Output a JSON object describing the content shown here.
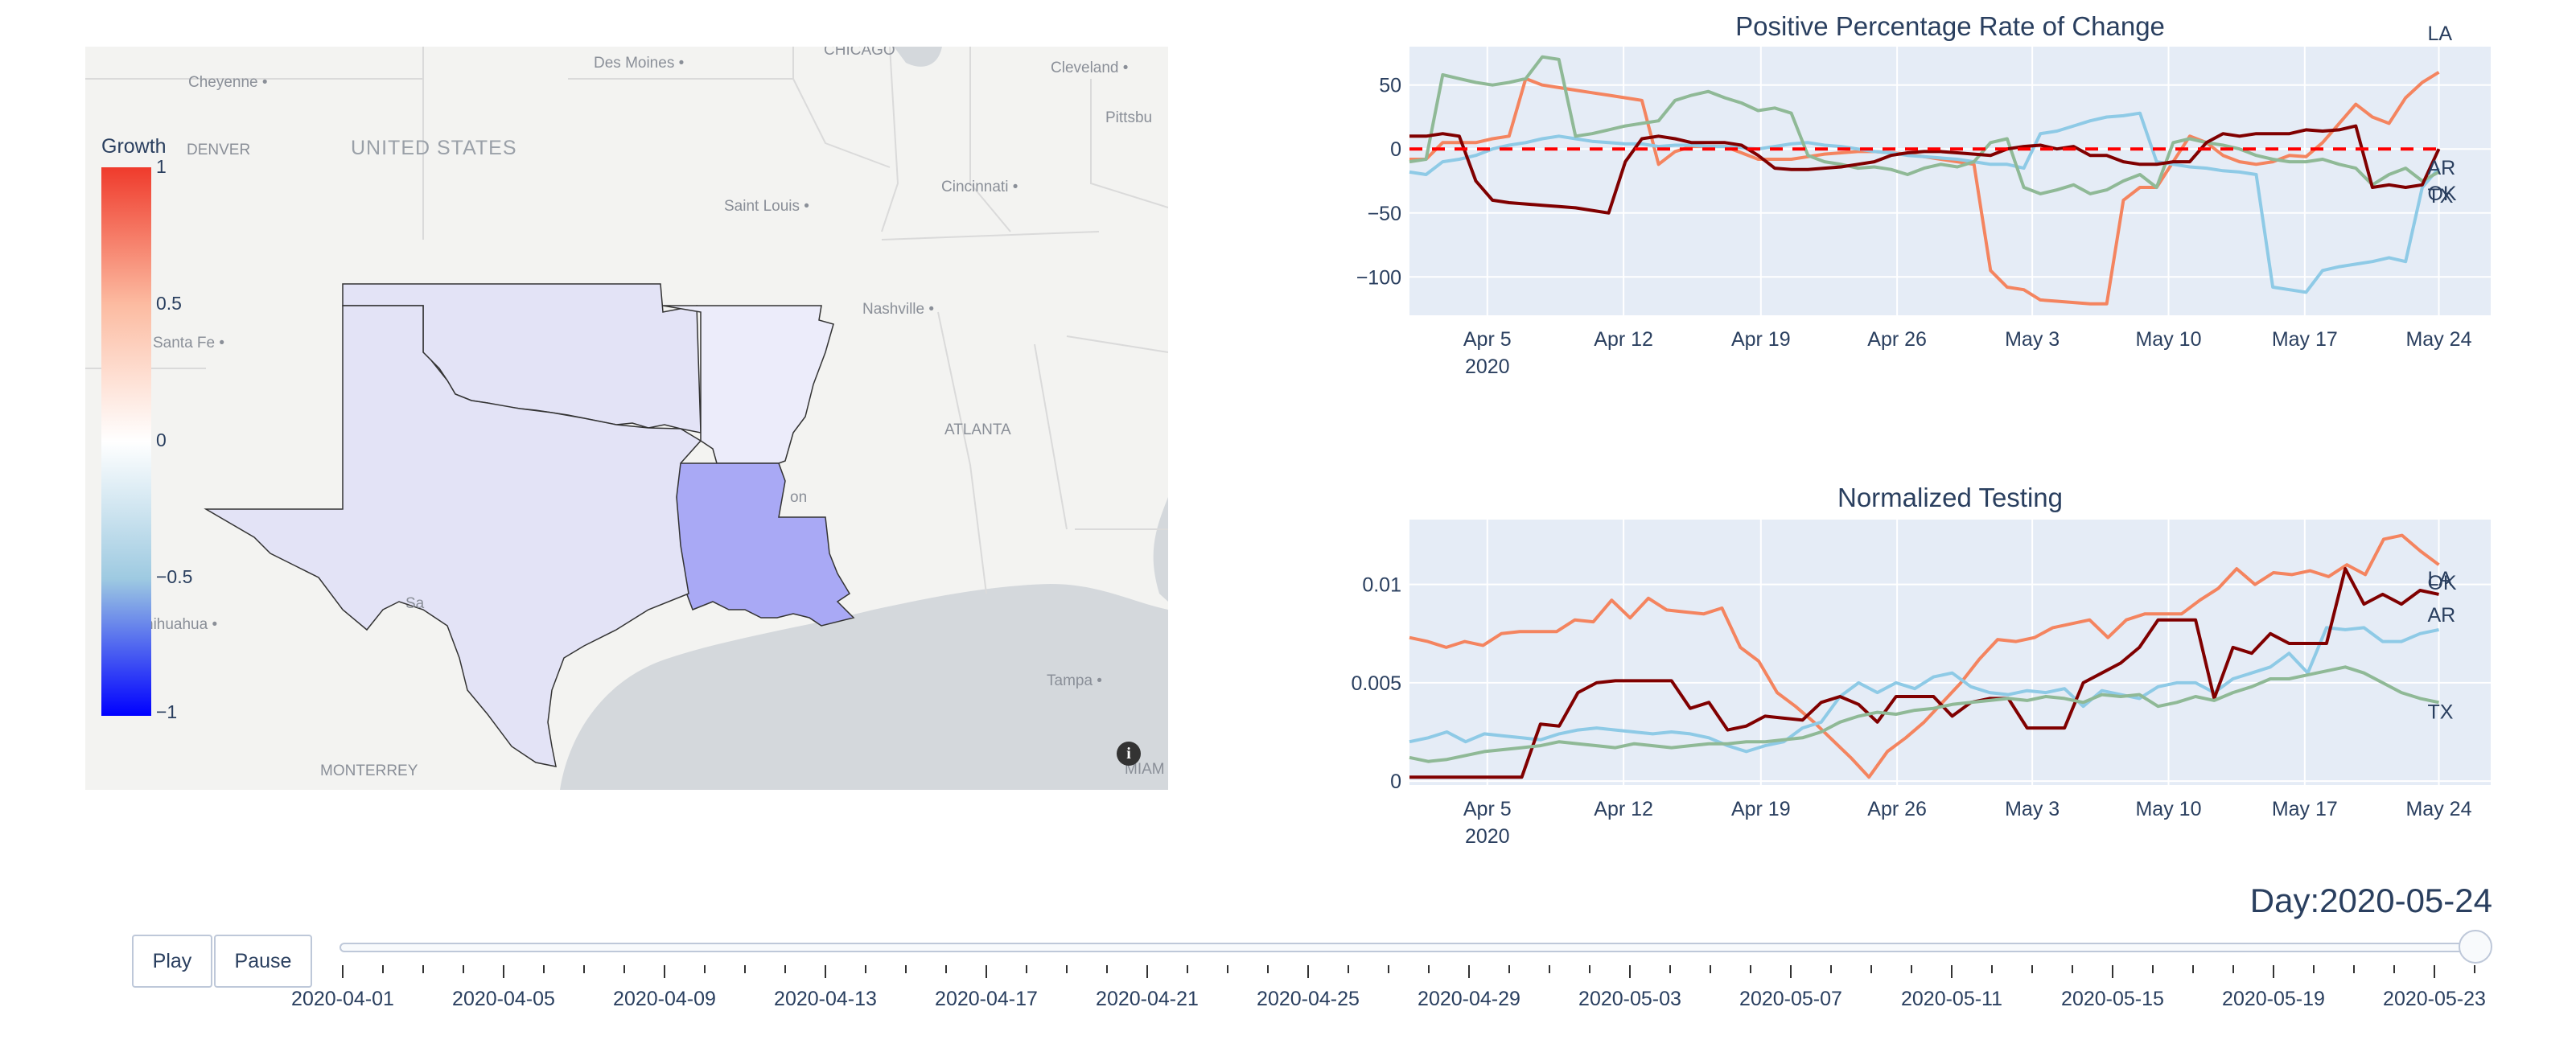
{
  "map": {
    "colorbar_title": "Growth",
    "colorbar_ticks": [
      "1",
      "0.5",
      "0",
      "−0.5",
      "−1"
    ],
    "place_labels": [
      {
        "name": "Cheyenne",
        "kind": "city"
      },
      {
        "name": "Des Moines",
        "kind": "city"
      },
      {
        "name": "CHICAGO",
        "kind": "city"
      },
      {
        "name": "Cleveland",
        "kind": "city"
      },
      {
        "name": "Pittsbu",
        "kind": "city"
      },
      {
        "name": "DENVER",
        "kind": "city"
      },
      {
        "name": "UNITED STATES",
        "kind": "country"
      },
      {
        "name": "Saint Louis",
        "kind": "city"
      },
      {
        "name": "Cincinnati",
        "kind": "city"
      },
      {
        "name": "Nashville",
        "kind": "city"
      },
      {
        "name": "Santa Fe",
        "kind": "city"
      },
      {
        "name": "ATLANTA",
        "kind": "city"
      },
      {
        "name": "on",
        "kind": "city"
      },
      {
        "name": "hihuahua",
        "kind": "city"
      },
      {
        "name": "Tampa",
        "kind": "city"
      },
      {
        "name": "MONTERREY",
        "kind": "city"
      },
      {
        "name": "MIAM",
        "kind": "city"
      },
      {
        "name": "Sa",
        "kind": "city"
      }
    ],
    "state_growth": {
      "TX": -0.12,
      "OK": -0.08,
      "AR": -0.05,
      "LA": -0.35
    },
    "info_icon": "info-icon"
  },
  "chart_data": [
    {
      "type": "line",
      "title": "Positive Percentage Rate of Change",
      "x_tick_labels": [
        "Apr 5",
        "Apr 12",
        "Apr 19",
        "Apr 26",
        "May 3",
        "May 10",
        "May 17",
        "May 24"
      ],
      "x_tick_sublabel": "2020",
      "y_tick_labels": [
        "50",
        "0",
        "−50",
        "−100"
      ],
      "ylim": [
        -130,
        80
      ],
      "x_start": "2020-04-01",
      "reference_line": {
        "y": 0,
        "color": "#ff0000",
        "style": "dashed"
      },
      "series": [
        {
          "name": "LA",
          "color": "#f4845f",
          "values": [
            -8,
            -8,
            5,
            5,
            5,
            8,
            10,
            55,
            50,
            48,
            46,
            44,
            42,
            40,
            38,
            -12,
            -2,
            2,
            2,
            2,
            -3,
            -8,
            -8,
            -8,
            -6,
            -4,
            -3,
            -2,
            -2,
            -3,
            -4,
            -6,
            -8,
            -10,
            -12,
            -95,
            -108,
            -110,
            -118,
            -119,
            -120,
            -121,
            -121,
            -40,
            -30,
            -30,
            -10,
            10,
            5,
            -5,
            -10,
            -12,
            -10,
            -5,
            -6,
            5,
            20,
            35,
            25,
            20,
            40,
            52,
            60
          ]
        },
        {
          "name": "AR",
          "color": "#8ecae6",
          "values": [
            -18,
            -20,
            -10,
            -8,
            -5,
            0,
            3,
            5,
            8,
            10,
            8,
            6,
            5,
            4,
            4,
            2,
            3,
            3,
            2,
            2,
            1,
            0,
            2,
            4,
            5,
            3,
            2,
            0,
            -2,
            -3,
            -5,
            -6,
            -7,
            -8,
            -10,
            -12,
            -12,
            -15,
            12,
            14,
            18,
            22,
            25,
            26,
            28,
            -10,
            -12,
            -14,
            -15,
            -17,
            -18,
            -20,
            -108,
            -110,
            -112,
            -95,
            -92,
            -90,
            -88,
            -85,
            -88,
            -30,
            -15
          ]
        },
        {
          "name": "OK",
          "color": "#8fb996",
          "values": [
            -10,
            -8,
            58,
            55,
            52,
            50,
            52,
            55,
            72,
            70,
            10,
            12,
            15,
            18,
            20,
            22,
            38,
            42,
            45,
            40,
            36,
            30,
            32,
            28,
            -5,
            -10,
            -12,
            -15,
            -14,
            -16,
            -20,
            -15,
            -12,
            -14,
            -10,
            5,
            8,
            -30,
            -35,
            -32,
            -28,
            -35,
            -32,
            -25,
            -20,
            -30,
            5,
            8,
            5,
            3,
            0,
            -5,
            -8,
            -10,
            -10,
            -8,
            -12,
            -15,
            -28,
            -20,
            -15,
            -25,
            -18
          ]
        },
        {
          "name": "TX",
          "color": "#800000",
          "values": [
            10,
            10,
            12,
            10,
            -25,
            -40,
            -42,
            -43,
            -44,
            -45,
            -46,
            -48,
            -50,
            -10,
            8,
            10,
            8,
            5,
            5,
            5,
            3,
            -5,
            -15,
            -16,
            -16,
            -15,
            -14,
            -12,
            -10,
            -5,
            -3,
            -2,
            -2,
            -3,
            -4,
            -5,
            0,
            2,
            3,
            0,
            2,
            -5,
            -5,
            -10,
            -12,
            -12,
            -10,
            -10,
            5,
            12,
            10,
            12,
            12,
            12,
            15,
            14,
            15,
            18,
            -30,
            -28,
            -30,
            -28,
            0
          ]
        }
      ]
    },
    {
      "type": "line",
      "title": "Normalized Testing",
      "x_tick_labels": [
        "Apr 5",
        "Apr 12",
        "Apr 19",
        "Apr 26",
        "May 3",
        "May 10",
        "May 17",
        "May 24"
      ],
      "x_tick_sublabel": "2020",
      "y_tick_labels": [
        "0.01",
        "0.005",
        "0"
      ],
      "ylim": [
        -0.0002,
        0.0133
      ],
      "x_start": "2020-04-01",
      "series": [
        {
          "name": "LA",
          "color": "#f4845f",
          "values": [
            0.0073,
            0.0071,
            0.0068,
            0.0071,
            0.0069,
            0.0075,
            0.0076,
            0.0076,
            0.0076,
            0.0082,
            0.0081,
            0.0092,
            0.0083,
            0.0093,
            0.0087,
            0.0086,
            0.0085,
            0.0088,
            0.0068,
            0.0061,
            0.0045,
            0.0038,
            0.003,
            0.0021,
            0.0012,
            0.0002,
            0.0015,
            0.0022,
            0.003,
            0.004,
            0.005,
            0.0062,
            0.0072,
            0.0071,
            0.0073,
            0.0078,
            0.008,
            0.0082,
            0.0073,
            0.0082,
            0.0085,
            0.0085,
            0.0085,
            0.0092,
            0.0098,
            0.0108,
            0.01,
            0.0106,
            0.0105,
            0.0107,
            0.0104,
            0.011,
            0.0105,
            0.0123,
            0.0125,
            0.0117,
            0.011
          ]
        },
        {
          "name": "AR",
          "color": "#8ecae6",
          "values": [
            0.002,
            0.0022,
            0.0025,
            0.002,
            0.0024,
            0.0023,
            0.0022,
            0.0021,
            0.0024,
            0.0026,
            0.0027,
            0.0026,
            0.0025,
            0.0024,
            0.0025,
            0.0024,
            0.0022,
            0.0018,
            0.0015,
            0.0018,
            0.002,
            0.0027,
            0.003,
            0.0043,
            0.005,
            0.0045,
            0.005,
            0.0047,
            0.0053,
            0.0055,
            0.0048,
            0.0045,
            0.0044,
            0.0046,
            0.0045,
            0.0047,
            0.0038,
            0.0046,
            0.0044,
            0.0042,
            0.0048,
            0.005,
            0.005,
            0.0045,
            0.0052,
            0.0055,
            0.0058,
            0.0065,
            0.0055,
            0.0078,
            0.0077,
            0.0078,
            0.0071,
            0.0071,
            0.0075,
            0.0077
          ]
        },
        {
          "name": "OK",
          "color": "#800000",
          "values": [
            0.0002,
            0.0002,
            0.0002,
            0.0002,
            0.0002,
            0.0002,
            0.0002,
            0.0029,
            0.0028,
            0.0045,
            0.005,
            0.0051,
            0.0051,
            0.0051,
            0.0051,
            0.0037,
            0.004,
            0.0026,
            0.0028,
            0.0033,
            0.0032,
            0.0031,
            0.004,
            0.0043,
            0.0039,
            0.003,
            0.0043,
            0.0043,
            0.0043,
            0.0033,
            0.004,
            0.0042,
            0.0042,
            0.0027,
            0.0027,
            0.0027,
            0.005,
            0.0055,
            0.006,
            0.0068,
            0.0082,
            0.0082,
            0.0082,
            0.0042,
            0.0068,
            0.0065,
            0.0075,
            0.007,
            0.007,
            0.007,
            0.0108,
            0.009,
            0.0095,
            0.009,
            0.0097,
            0.0095
          ]
        },
        {
          "name": "TX",
          "color": "#8fb996",
          "values": [
            0.0012,
            0.001,
            0.0011,
            0.0013,
            0.0015,
            0.0016,
            0.0017,
            0.0018,
            0.002,
            0.0019,
            0.0018,
            0.0017,
            0.0019,
            0.0018,
            0.0017,
            0.0018,
            0.0019,
            0.0019,
            0.002,
            0.002,
            0.0021,
            0.0022,
            0.0025,
            0.003,
            0.0033,
            0.0035,
            0.0034,
            0.0036,
            0.0037,
            0.0039,
            0.004,
            0.0041,
            0.0042,
            0.0041,
            0.0043,
            0.0042,
            0.004,
            0.0044,
            0.0043,
            0.0044,
            0.0038,
            0.004,
            0.0043,
            0.0041,
            0.0045,
            0.0048,
            0.0052,
            0.0052,
            0.0054,
            0.0056,
            0.0058,
            0.0055,
            0.005,
            0.0045,
            0.0042,
            0.004
          ]
        }
      ]
    }
  ],
  "player": {
    "play_label": "Play",
    "pause_label": "Pause",
    "day_prefix": "Day:",
    "current_day": "2020-05-24",
    "slider_labels": [
      "2020-04-01",
      "2020-04-05",
      "2020-04-09",
      "2020-04-13",
      "2020-04-17",
      "2020-04-21",
      "2020-04-25",
      "2020-04-29",
      "2020-05-03",
      "2020-05-07",
      "2020-05-11",
      "2020-05-15",
      "2020-05-19",
      "2020-05-23"
    ],
    "slider_position": 1.0
  }
}
